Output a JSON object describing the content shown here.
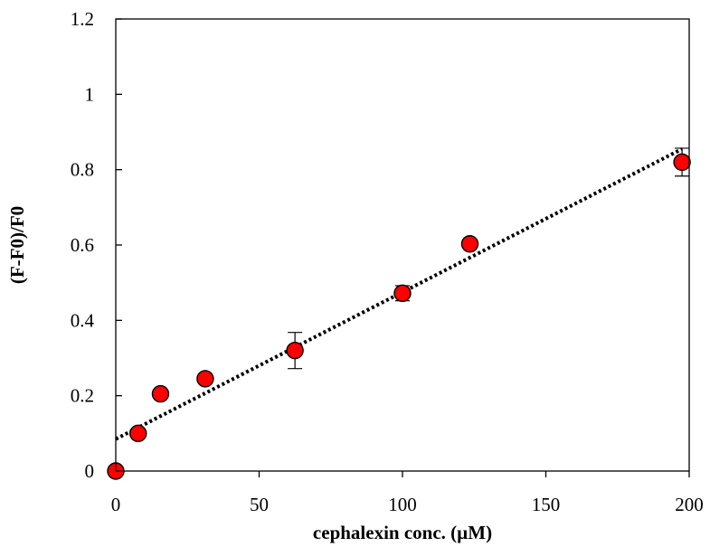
{
  "chart_data": {
    "type": "scatter",
    "title": "",
    "xlabel": "cephalexin conc. (µM)",
    "ylabel": "(F-F0)/F0",
    "xlim": [
      0,
      200
    ],
    "ylim": [
      0,
      1.2
    ],
    "xticks": [
      0,
      50,
      100,
      150,
      200
    ],
    "yticks": [
      0,
      0.2,
      0.4,
      0.6,
      0.8,
      1,
      1.2
    ],
    "xtick_labels": [
      "0",
      "50",
      "100",
      "150",
      "200"
    ],
    "ytick_labels": [
      "0",
      "0.2",
      "0.4",
      "0.6",
      "0.8",
      "1",
      "1.2"
    ],
    "grid": false,
    "legend": "none",
    "series": [
      {
        "marker_color": "#ff0000",
        "points": [
          {
            "x": 0,
            "y": 0.0,
            "err": 0
          },
          {
            "x": 7.8,
            "y": 0.1,
            "err": 0
          },
          {
            "x": 15.6,
            "y": 0.205,
            "err": 0
          },
          {
            "x": 31.2,
            "y": 0.245,
            "err": 0
          },
          {
            "x": 62.5,
            "y": 0.32,
            "err": 0.048
          },
          {
            "x": 100,
            "y": 0.472,
            "err": 0.02
          },
          {
            "x": 123.5,
            "y": 0.603,
            "err": 0
          },
          {
            "x": 197.5,
            "y": 0.82,
            "err": 0.037
          }
        ]
      }
    ],
    "trendline": {
      "style": "dotted",
      "color": "#000000",
      "x": [
        0,
        197.5
      ],
      "y": [
        0.085,
        0.855
      ]
    }
  }
}
